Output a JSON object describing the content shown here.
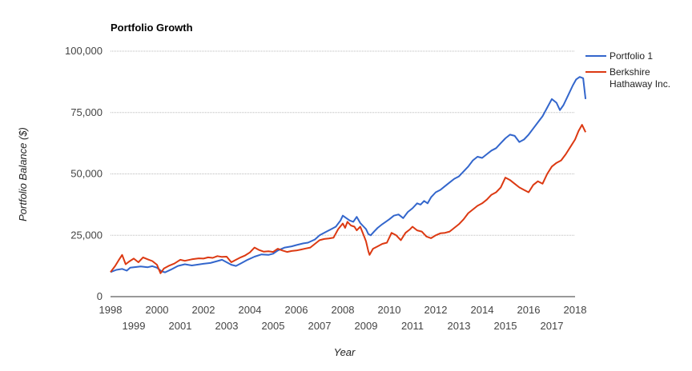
{
  "chart_data": {
    "type": "line",
    "title": "Portfolio Growth",
    "xlabel": "Year",
    "ylabel": "Portfolio Balance ($)",
    "xlim": [
      1998.0,
      2018.0
    ],
    "ylim": [
      0,
      100000
    ],
    "y_ticks": [
      0,
      25000,
      50000,
      75000,
      100000
    ],
    "y_tick_labels": [
      "0",
      "25,000",
      "50,000",
      "75,000",
      "100,000"
    ],
    "x_ticks_upper": [
      "1998",
      "2000",
      "2002",
      "2004",
      "2006",
      "2008",
      "2010",
      "2012",
      "2014",
      "2016",
      "2018"
    ],
    "x_ticks_lower": [
      "1999",
      "2001",
      "2003",
      "2005",
      "2007",
      "2009",
      "2011",
      "2013",
      "2015",
      "2017"
    ],
    "grid": true,
    "legend_position": "right",
    "series": [
      {
        "name": "Portfolio 1",
        "color": "#3366cc",
        "points": [
          [
            1998.0,
            10000
          ],
          [
            1998.25,
            10900
          ],
          [
            1998.5,
            11300
          ],
          [
            1998.7,
            10600
          ],
          [
            1998.85,
            11800
          ],
          [
            1999.0,
            12000
          ],
          [
            1999.3,
            12300
          ],
          [
            1999.6,
            12000
          ],
          [
            1999.8,
            12400
          ],
          [
            2000.0,
            11800
          ],
          [
            2000.2,
            10300
          ],
          [
            2000.35,
            9900
          ],
          [
            2000.6,
            11000
          ],
          [
            2000.9,
            12500
          ],
          [
            2001.2,
            13200
          ],
          [
            2001.5,
            12700
          ],
          [
            2001.8,
            13100
          ],
          [
            2002.0,
            13400
          ],
          [
            2002.3,
            13700
          ],
          [
            2002.6,
            14500
          ],
          [
            2002.8,
            15000
          ],
          [
            2003.0,
            14000
          ],
          [
            2003.2,
            13000
          ],
          [
            2003.4,
            12500
          ],
          [
            2003.6,
            13500
          ],
          [
            2003.9,
            15000
          ],
          [
            2004.2,
            16300
          ],
          [
            2004.5,
            17200
          ],
          [
            2004.8,
            17000
          ],
          [
            2005.0,
            17500
          ],
          [
            2005.2,
            18800
          ],
          [
            2005.5,
            20000
          ],
          [
            2005.8,
            20500
          ],
          [
            2006.0,
            21000
          ],
          [
            2006.3,
            21700
          ],
          [
            2006.5,
            22000
          ],
          [
            2006.8,
            23300
          ],
          [
            2007.0,
            25000
          ],
          [
            2007.3,
            26500
          ],
          [
            2007.5,
            27500
          ],
          [
            2007.7,
            28500
          ],
          [
            2007.9,
            31000
          ],
          [
            2008.0,
            33000
          ],
          [
            2008.15,
            32000
          ],
          [
            2008.3,
            31000
          ],
          [
            2008.45,
            30500
          ],
          [
            2008.6,
            32500
          ],
          [
            2008.75,
            30000
          ],
          [
            2008.9,
            28500
          ],
          [
            2009.0,
            27500
          ],
          [
            2009.1,
            25500
          ],
          [
            2009.2,
            25000
          ],
          [
            2009.35,
            26500
          ],
          [
            2009.5,
            28000
          ],
          [
            2009.7,
            29500
          ],
          [
            2009.85,
            30500
          ],
          [
            2010.0,
            31500
          ],
          [
            2010.2,
            33000
          ],
          [
            2010.4,
            33500
          ],
          [
            2010.6,
            32000
          ],
          [
            2010.8,
            34500
          ],
          [
            2011.0,
            36000
          ],
          [
            2011.2,
            38000
          ],
          [
            2011.35,
            37500
          ],
          [
            2011.5,
            39000
          ],
          [
            2011.65,
            38000
          ],
          [
            2011.8,
            40500
          ],
          [
            2012.0,
            42500
          ],
          [
            2012.2,
            43500
          ],
          [
            2012.4,
            45000
          ],
          [
            2012.6,
            46500
          ],
          [
            2012.8,
            48000
          ],
          [
            2013.0,
            49000
          ],
          [
            2013.2,
            51000
          ],
          [
            2013.4,
            53000
          ],
          [
            2013.6,
            55500
          ],
          [
            2013.8,
            57000
          ],
          [
            2014.0,
            56500
          ],
          [
            2014.2,
            58000
          ],
          [
            2014.4,
            59500
          ],
          [
            2014.6,
            60500
          ],
          [
            2014.8,
            62500
          ],
          [
            2015.0,
            64500
          ],
          [
            2015.2,
            66000
          ],
          [
            2015.4,
            65500
          ],
          [
            2015.6,
            63000
          ],
          [
            2015.8,
            64000
          ],
          [
            2016.0,
            66000
          ],
          [
            2016.2,
            68500
          ],
          [
            2016.4,
            71000
          ],
          [
            2016.6,
            73500
          ],
          [
            2016.8,
            77000
          ],
          [
            2017.0,
            80500
          ],
          [
            2017.2,
            79000
          ],
          [
            2017.35,
            76000
          ],
          [
            2017.5,
            78000
          ],
          [
            2017.7,
            82000
          ],
          [
            2017.9,
            86000
          ],
          [
            2018.05,
            88500
          ],
          [
            2018.2,
            89500
          ],
          [
            2018.35,
            89000
          ],
          [
            2018.45,
            80500
          ]
        ]
      },
      {
        "name": "Berkshire Hathaway Inc.",
        "color": "#dc3912",
        "points": [
          [
            1998.0,
            10000
          ],
          [
            1998.2,
            12500
          ],
          [
            1998.35,
            14800
          ],
          [
            1998.5,
            17000
          ],
          [
            1998.65,
            13200
          ],
          [
            1998.8,
            14300
          ],
          [
            1999.0,
            15500
          ],
          [
            1999.2,
            14000
          ],
          [
            1999.4,
            16000
          ],
          [
            1999.6,
            15200
          ],
          [
            1999.8,
            14500
          ],
          [
            2000.0,
            13000
          ],
          [
            2000.15,
            9500
          ],
          [
            2000.3,
            11500
          ],
          [
            2000.5,
            12500
          ],
          [
            2000.75,
            13500
          ],
          [
            2001.0,
            15000
          ],
          [
            2001.2,
            14600
          ],
          [
            2001.5,
            15200
          ],
          [
            2001.8,
            15600
          ],
          [
            2002.0,
            15500
          ],
          [
            2002.2,
            16000
          ],
          [
            2002.4,
            15800
          ],
          [
            2002.6,
            16500
          ],
          [
            2002.8,
            16200
          ],
          [
            2003.0,
            16300
          ],
          [
            2003.2,
            14000
          ],
          [
            2003.4,
            15000
          ],
          [
            2003.6,
            16000
          ],
          [
            2003.8,
            16800
          ],
          [
            2004.0,
            18000
          ],
          [
            2004.2,
            20000
          ],
          [
            2004.4,
            19000
          ],
          [
            2004.6,
            18300
          ],
          [
            2004.8,
            18500
          ],
          [
            2005.0,
            18200
          ],
          [
            2005.2,
            19500
          ],
          [
            2005.4,
            18800
          ],
          [
            2005.6,
            18200
          ],
          [
            2005.8,
            18600
          ],
          [
            2006.0,
            18800
          ],
          [
            2006.2,
            19200
          ],
          [
            2006.4,
            19600
          ],
          [
            2006.6,
            20000
          ],
          [
            2006.8,
            21500
          ],
          [
            2007.0,
            23000
          ],
          [
            2007.2,
            23500
          ],
          [
            2007.4,
            23700
          ],
          [
            2007.6,
            24000
          ],
          [
            2007.8,
            27500
          ],
          [
            2008.0,
            29800
          ],
          [
            2008.1,
            28000
          ],
          [
            2008.2,
            30500
          ],
          [
            2008.35,
            29000
          ],
          [
            2008.5,
            28500
          ],
          [
            2008.6,
            27000
          ],
          [
            2008.75,
            28500
          ],
          [
            2008.9,
            25000
          ],
          [
            2009.0,
            22500
          ],
          [
            2009.1,
            18500
          ],
          [
            2009.15,
            17000
          ],
          [
            2009.3,
            19500
          ],
          [
            2009.5,
            20500
          ],
          [
            2009.7,
            21500
          ],
          [
            2009.9,
            22000
          ],
          [
            2010.0,
            24000
          ],
          [
            2010.1,
            26000
          ],
          [
            2010.3,
            25000
          ],
          [
            2010.5,
            23000
          ],
          [
            2010.7,
            26000
          ],
          [
            2010.9,
            27500
          ],
          [
            2011.0,
            28500
          ],
          [
            2011.2,
            27000
          ],
          [
            2011.4,
            26500
          ],
          [
            2011.6,
            24500
          ],
          [
            2011.8,
            23800
          ],
          [
            2012.0,
            25000
          ],
          [
            2012.2,
            25800
          ],
          [
            2012.4,
            26000
          ],
          [
            2012.6,
            26500
          ],
          [
            2012.8,
            28000
          ],
          [
            2013.0,
            29500
          ],
          [
            2013.2,
            31500
          ],
          [
            2013.4,
            34000
          ],
          [
            2013.6,
            35500
          ],
          [
            2013.8,
            37000
          ],
          [
            2014.0,
            38000
          ],
          [
            2014.2,
            39500
          ],
          [
            2014.4,
            41500
          ],
          [
            2014.6,
            42500
          ],
          [
            2014.8,
            44500
          ],
          [
            2015.0,
            48500
          ],
          [
            2015.2,
            47500
          ],
          [
            2015.4,
            46000
          ],
          [
            2015.6,
            44500
          ],
          [
            2015.8,
            43500
          ],
          [
            2016.0,
            42500
          ],
          [
            2016.2,
            45500
          ],
          [
            2016.4,
            47000
          ],
          [
            2016.6,
            46000
          ],
          [
            2016.8,
            50000
          ],
          [
            2017.0,
            53000
          ],
          [
            2017.2,
            54500
          ],
          [
            2017.4,
            55500
          ],
          [
            2017.6,
            58000
          ],
          [
            2017.8,
            61000
          ],
          [
            2018.0,
            64000
          ],
          [
            2018.15,
            67500
          ],
          [
            2018.3,
            70000
          ],
          [
            2018.45,
            67000
          ]
        ]
      }
    ]
  }
}
